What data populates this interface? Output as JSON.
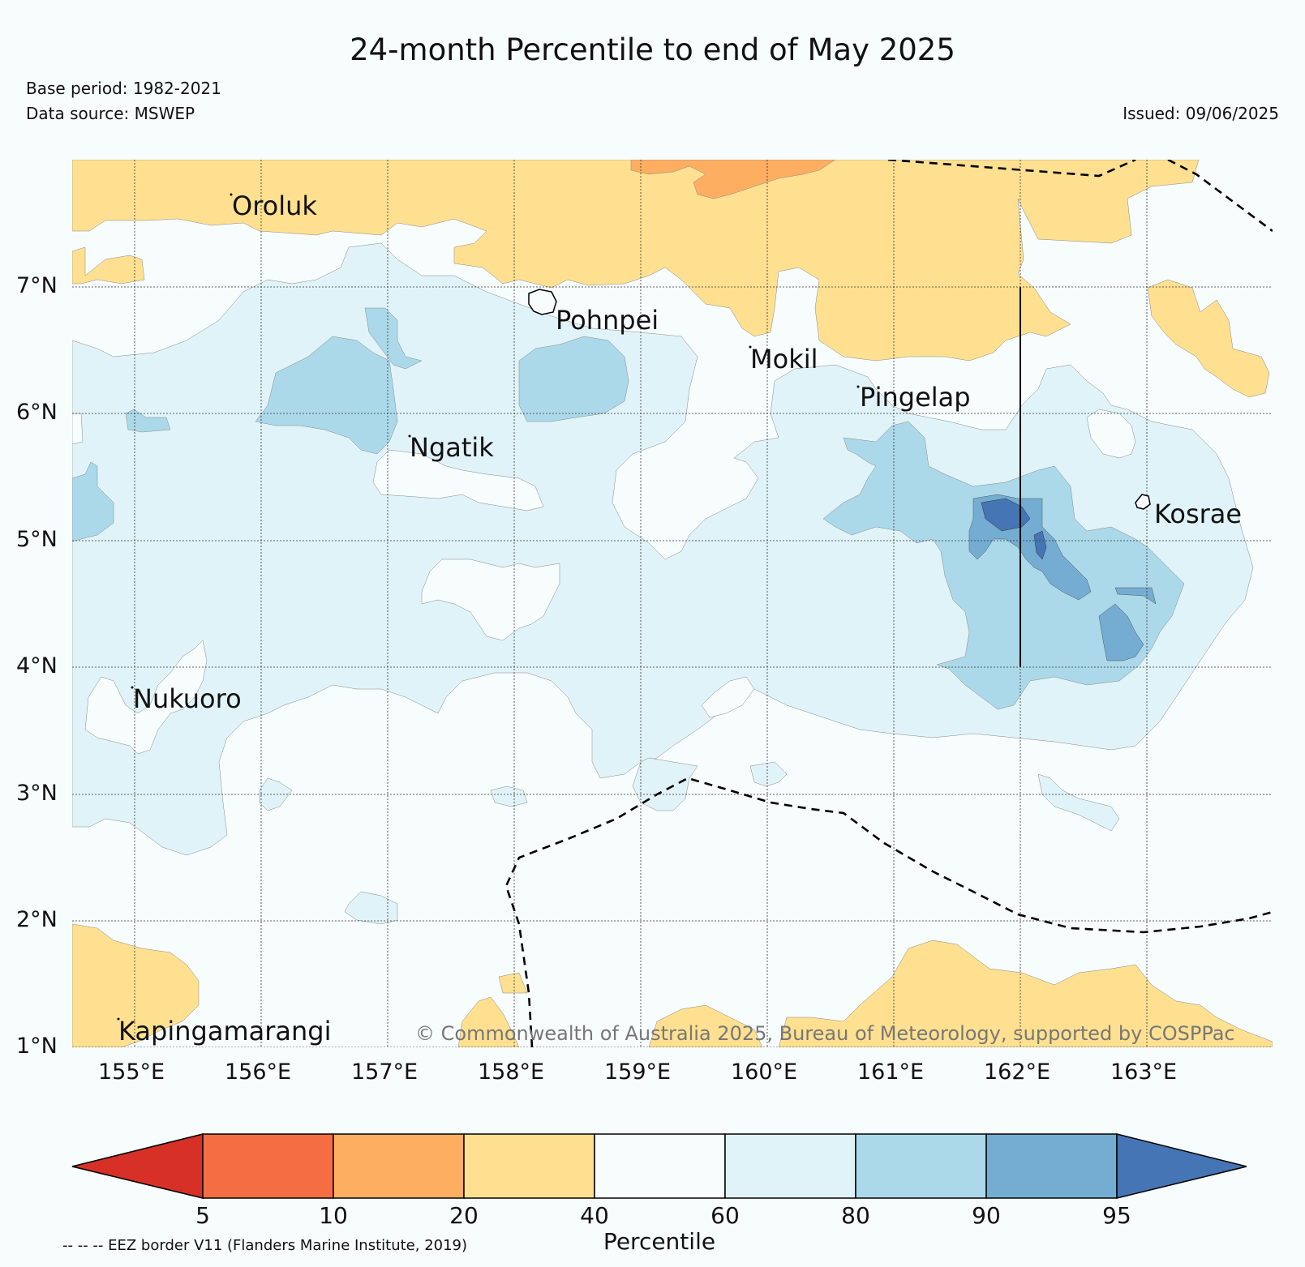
{
  "title": "24-month Percentile to end of May 2025",
  "base_period": "Base period: 1982-2021",
  "data_source": "Data source: MSWEP",
  "issued": "Issued: 09/06/2025",
  "copyright": "© Commonwealth of Australia 2025, Bureau of Meteorology, supported by COSPPac",
  "eez_note": "-- -- -- EEZ border V11 (Flanders Marine Institute, 2019)",
  "axes": {
    "lat_labels": [
      "7°N",
      "6°N",
      "5°N",
      "4°N",
      "3°N",
      "2°N",
      "1°N"
    ],
    "lon_labels": [
      "155°E",
      "156°E",
      "157°E",
      "158°E",
      "159°E",
      "160°E",
      "161°E",
      "162°E",
      "163°E"
    ]
  },
  "places": [
    {
      "name": "Oroluk"
    },
    {
      "name": "Pohnpei"
    },
    {
      "name": "Mokil"
    },
    {
      "name": "Pingelap"
    },
    {
      "name": "Ngatik"
    },
    {
      "name": "Kosrae"
    },
    {
      "name": "Nukuoro"
    },
    {
      "name": "Kapingamarangi"
    }
  ],
  "colorbar": {
    "title": "Percentile",
    "ticks": [
      "5",
      "10",
      "20",
      "40",
      "60",
      "80",
      "90",
      "95"
    ],
    "colors": {
      "lt5": "#d73027",
      "5_10": "#f46d43",
      "10_20": "#fdae61",
      "20_40": "#fee090",
      "40_60": "#f7fcfd",
      "60_80": "#e0f3f8",
      "80_90": "#abd9e9",
      "90_95": "#74add1",
      "gt95": "#4575b4"
    }
  }
}
